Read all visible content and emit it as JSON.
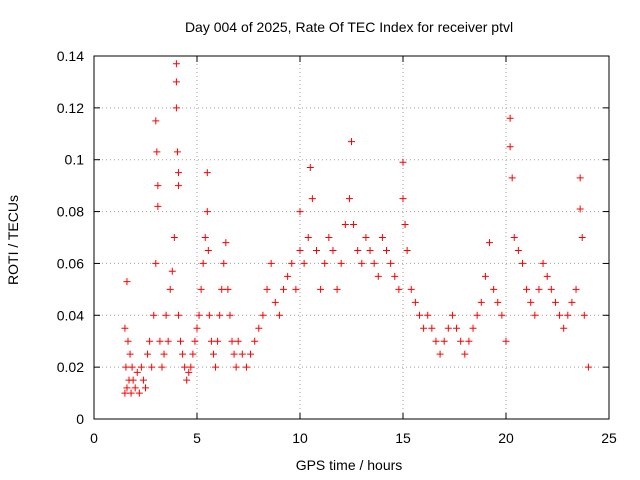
{
  "chart_data": {
    "type": "scatter",
    "title": "Day 004 of 2025, Rate Of TEC Index for receiver ptvl",
    "xlabel": "GPS time / hours",
    "ylabel": "ROTI / TECUs",
    "xlim": [
      0,
      25
    ],
    "ylim": [
      0,
      0.14
    ],
    "xticks": [
      0,
      5,
      10,
      15,
      20,
      25
    ],
    "xtick_labels": [
      "0",
      "5",
      "10",
      "15",
      "20",
      "25"
    ],
    "yticks": [
      0,
      0.02,
      0.04,
      0.06,
      0.08,
      0.1,
      0.12,
      0.14
    ],
    "ytick_labels": [
      "0",
      "0.02",
      "0.04",
      "0.06",
      "0.08",
      "0.1",
      "0.12",
      "0.14"
    ],
    "grid": true,
    "marker": "+",
    "series": [
      {
        "name": "ROTI",
        "color": "#ff0000",
        "x": [
          1.5,
          1.5,
          1.55,
          1.6,
          1.6,
          1.65,
          1.7,
          1.75,
          1.8,
          1.85,
          1.9,
          2.0,
          2.1,
          2.2,
          2.3,
          2.4,
          2.5,
          2.6,
          2.7,
          2.8,
          2.9,
          3.0,
          3.0,
          3.05,
          3.1,
          3.1,
          3.2,
          3.3,
          3.4,
          3.5,
          3.6,
          3.7,
          3.8,
          3.9,
          4.0,
          4.0,
          4.0,
          4.05,
          4.1,
          4.1,
          4.1,
          4.2,
          4.3,
          4.4,
          4.5,
          4.6,
          4.7,
          4.8,
          4.9,
          5.0,
          5.1,
          5.2,
          5.3,
          5.4,
          5.5,
          5.5,
          5.55,
          5.6,
          5.7,
          5.8,
          5.9,
          6.0,
          6.1,
          6.2,
          6.3,
          6.4,
          6.5,
          6.6,
          6.7,
          6.8,
          6.9,
          7.0,
          7.2,
          7.4,
          7.6,
          7.8,
          8.0,
          8.2,
          8.4,
          8.6,
          8.8,
          9.0,
          9.2,
          9.4,
          9.6,
          9.8,
          10.0,
          10.0,
          10.2,
          10.4,
          10.5,
          10.6,
          10.8,
          11.0,
          11.2,
          11.4,
          11.6,
          11.8,
          12.0,
          12.2,
          12.4,
          12.5,
          12.6,
          12.8,
          13.0,
          13.2,
          13.4,
          13.6,
          13.8,
          14.0,
          14.2,
          14.4,
          14.6,
          14.8,
          15.0,
          15.0,
          15.1,
          15.2,
          15.4,
          15.6,
          15.8,
          16.0,
          16.2,
          16.4,
          16.6,
          16.8,
          17.0,
          17.2,
          17.4,
          17.6,
          17.8,
          18.0,
          18.2,
          18.4,
          18.6,
          18.8,
          19.0,
          19.2,
          19.4,
          19.6,
          19.8,
          20.0,
          20.2,
          20.2,
          20.3,
          20.4,
          20.6,
          20.8,
          21.0,
          21.2,
          21.4,
          21.6,
          21.8,
          22.0,
          22.2,
          22.4,
          22.6,
          22.8,
          23.0,
          23.2,
          23.4,
          23.6,
          23.6,
          23.7,
          23.8,
          24.0
        ],
        "y": [
          0.01,
          0.035,
          0.02,
          0.012,
          0.053,
          0.03,
          0.015,
          0.025,
          0.01,
          0.02,
          0.015,
          0.012,
          0.018,
          0.01,
          0.02,
          0.015,
          0.012,
          0.025,
          0.03,
          0.02,
          0.04,
          0.06,
          0.115,
          0.103,
          0.09,
          0.082,
          0.03,
          0.02,
          0.025,
          0.04,
          0.03,
          0.05,
          0.057,
          0.07,
          0.137,
          0.13,
          0.12,
          0.103,
          0.095,
          0.09,
          0.04,
          0.03,
          0.025,
          0.02,
          0.015,
          0.018,
          0.02,
          0.025,
          0.03,
          0.035,
          0.04,
          0.05,
          0.06,
          0.07,
          0.095,
          0.08,
          0.065,
          0.04,
          0.03,
          0.025,
          0.02,
          0.03,
          0.04,
          0.05,
          0.06,
          0.068,
          0.05,
          0.04,
          0.03,
          0.025,
          0.02,
          0.03,
          0.025,
          0.02,
          0.025,
          0.03,
          0.035,
          0.04,
          0.05,
          0.06,
          0.045,
          0.04,
          0.05,
          0.055,
          0.06,
          0.05,
          0.08,
          0.065,
          0.06,
          0.07,
          0.097,
          0.085,
          0.065,
          0.05,
          0.06,
          0.07,
          0.065,
          0.05,
          0.06,
          0.075,
          0.085,
          0.107,
          0.075,
          0.065,
          0.06,
          0.07,
          0.065,
          0.06,
          0.055,
          0.07,
          0.065,
          0.06,
          0.055,
          0.05,
          0.099,
          0.085,
          0.075,
          0.065,
          0.05,
          0.045,
          0.04,
          0.035,
          0.04,
          0.035,
          0.03,
          0.025,
          0.03,
          0.035,
          0.04,
          0.035,
          0.03,
          0.025,
          0.03,
          0.035,
          0.04,
          0.045,
          0.055,
          0.068,
          0.05,
          0.045,
          0.04,
          0.03,
          0.116,
          0.105,
          0.093,
          0.07,
          0.065,
          0.06,
          0.05,
          0.045,
          0.04,
          0.05,
          0.06,
          0.055,
          0.05,
          0.045,
          0.04,
          0.035,
          0.04,
          0.045,
          0.05,
          0.093,
          0.081,
          0.07,
          0.04,
          0.02
        ]
      }
    ]
  }
}
